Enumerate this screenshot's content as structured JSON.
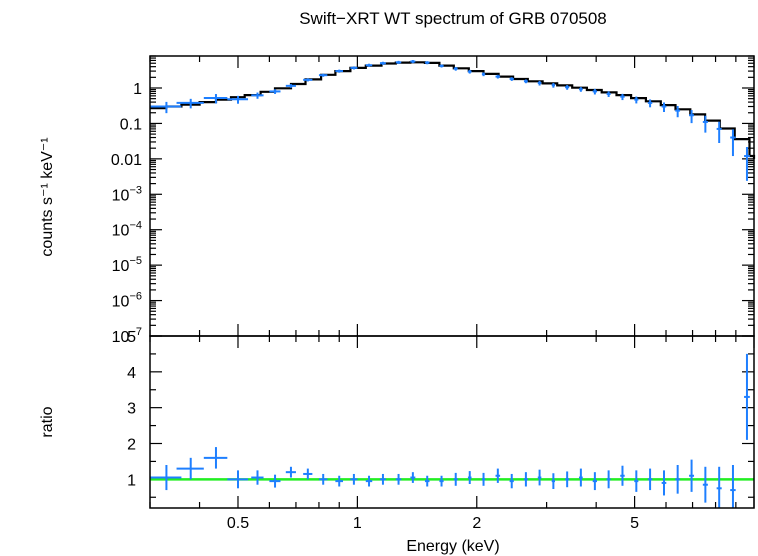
{
  "title": "Swift−XRT WT spectrum of GRB 070508",
  "xlabel": "Energy (keV)",
  "top_ylabel": "counts s⁻¹ keV⁻¹",
  "bottom_ylabel": "ratio",
  "colors": {
    "data": "#1e7fff",
    "model": "#000000",
    "unity_line": "#22ee22",
    "axes": "#000000"
  },
  "chart_data": [
    {
      "type": "line",
      "panel": "spectrum",
      "ylabel": "counts s⁻¹ keV⁻¹",
      "xscale": "log",
      "yscale": "log",
      "xlim": [
        0.3,
        10
      ],
      "ylim": [
        1e-07,
        8
      ],
      "yticks": [
        {
          "value": 1,
          "base": "1",
          "exp": ""
        },
        {
          "value": 0.1,
          "base": "0.1",
          "exp": ""
        },
        {
          "value": 0.01,
          "base": "0.01",
          "exp": ""
        },
        {
          "value": 0.001,
          "base": "10",
          "exp": "−3"
        },
        {
          "value": 0.0001,
          "base": "10",
          "exp": "−4"
        },
        {
          "value": 1e-05,
          "base": "10",
          "exp": "−5"
        },
        {
          "value": 1e-06,
          "base": "10",
          "exp": "−6"
        },
        {
          "value": 1e-07,
          "base": "10",
          "exp": "−7"
        }
      ],
      "series": [
        {
          "name": "",
          "kind": "data",
          "x": [
            0.33,
            0.38,
            0.44,
            0.5,
            0.56,
            0.62,
            0.68,
            0.75,
            0.82,
            0.9,
            0.98,
            1.07,
            1.16,
            1.27,
            1.38,
            1.5,
            1.63,
            1.77,
            1.92,
            2.08,
            2.26,
            2.45,
            2.66,
            2.88,
            3.12,
            3.38,
            3.66,
            3.97,
            4.3,
            4.66,
            5.05,
            5.47,
            5.93,
            6.42,
            6.96,
            7.54,
            8.17,
            8.85,
            9.6
          ],
          "y": [
            0.3,
            0.38,
            0.52,
            0.48,
            0.62,
            0.8,
            1.15,
            1.7,
            2.3,
            3.0,
            3.7,
            4.4,
            5.0,
            5.3,
            5.6,
            5.2,
            4.2,
            3.5,
            2.9,
            2.45,
            2.1,
            1.8,
            1.55,
            1.38,
            1.2,
            1.05,
            0.92,
            0.8,
            0.68,
            0.57,
            0.47,
            0.38,
            0.3,
            0.23,
            0.17,
            0.11,
            0.07,
            0.04,
            0.012
          ],
          "xerr": [
            0.03,
            0.03,
            0.03,
            0.03,
            0.02,
            0.02,
            0.02,
            0.02,
            0.02,
            0.02,
            0.02,
            0.02,
            0.02,
            0.02,
            0.02,
            0.02,
            0.02,
            0.02,
            0.02,
            0.02,
            0.03,
            0.03,
            0.03,
            0.03,
            0.03,
            0.04,
            0.04,
            0.05,
            0.05,
            0.06,
            0.06,
            0.07,
            0.08,
            0.09,
            0.1,
            0.11,
            0.12,
            0.14,
            0.16
          ],
          "yerr_frac": [
            0.35,
            0.3,
            0.3,
            0.25,
            0.2,
            0.15,
            0.12,
            0.1,
            0.1,
            0.1,
            0.1,
            0.1,
            0.1,
            0.1,
            0.1,
            0.1,
            0.1,
            0.12,
            0.12,
            0.12,
            0.12,
            0.12,
            0.12,
            0.15,
            0.15,
            0.15,
            0.15,
            0.18,
            0.18,
            0.2,
            0.22,
            0.25,
            0.3,
            0.35,
            0.4,
            0.5,
            0.6,
            0.7,
            0.8
          ]
        },
        {
          "name": "",
          "kind": "model",
          "x": [
            0.3,
            0.33,
            0.36,
            0.4,
            0.44,
            0.48,
            0.52,
            0.57,
            0.62,
            0.68,
            0.74,
            0.81,
            0.88,
            0.96,
            1.05,
            1.15,
            1.25,
            1.36,
            1.48,
            1.61,
            1.75,
            1.91,
            2.08,
            2.27,
            2.47,
            2.69,
            2.93,
            3.19,
            3.48,
            3.79,
            4.13,
            4.5,
            4.9,
            5.34,
            5.82,
            6.34,
            6.91,
            7.53,
            8.2,
            8.94,
            9.74,
            10.0
          ],
          "y": [
            0.27,
            0.3,
            0.34,
            0.4,
            0.47,
            0.55,
            0.63,
            0.78,
            0.98,
            1.3,
            1.75,
            2.35,
            3.0,
            3.7,
            4.3,
            4.9,
            5.2,
            5.3,
            5.1,
            4.3,
            3.6,
            3.0,
            2.5,
            2.1,
            1.8,
            1.55,
            1.35,
            1.18,
            1.02,
            0.88,
            0.75,
            0.63,
            0.52,
            0.42,
            0.33,
            0.25,
            0.18,
            0.12,
            0.072,
            0.036,
            0.012,
            0.01
          ]
        }
      ]
    },
    {
      "type": "line",
      "panel": "ratio",
      "ylabel": "ratio",
      "xlabel": "Energy (keV)",
      "xscale": "log",
      "yscale": "linear",
      "xlim": [
        0.3,
        10
      ],
      "ylim": [
        0.2,
        5
      ],
      "yticks": [
        {
          "value": 1,
          "label": "1"
        },
        {
          "value": 2,
          "label": "2"
        },
        {
          "value": 3,
          "label": "3"
        },
        {
          "value": 4,
          "label": "4"
        },
        {
          "value": 5,
          "label": "5"
        }
      ],
      "xticks": [
        {
          "value": 0.5,
          "label": "0.5"
        },
        {
          "value": 1,
          "label": "1"
        },
        {
          "value": 2,
          "label": "2"
        },
        {
          "value": 5,
          "label": "5"
        }
      ],
      "reference_line": 1,
      "series": [
        {
          "name": "",
          "kind": "data",
          "x": [
            0.33,
            0.38,
            0.44,
            0.5,
            0.56,
            0.62,
            0.68,
            0.75,
            0.82,
            0.9,
            0.98,
            1.07,
            1.16,
            1.27,
            1.38,
            1.5,
            1.63,
            1.77,
            1.92,
            2.08,
            2.26,
            2.45,
            2.66,
            2.88,
            3.12,
            3.38,
            3.66,
            3.97,
            4.3,
            4.66,
            5.05,
            5.47,
            5.93,
            6.42,
            6.96,
            7.54,
            8.17,
            8.85,
            9.6
          ],
          "y": [
            1.05,
            1.3,
            1.6,
            1.0,
            1.05,
            0.95,
            1.2,
            1.15,
            1.0,
            0.95,
            1.0,
            0.95,
            1.0,
            1.0,
            1.05,
            0.95,
            0.95,
            1.0,
            1.05,
            1.0,
            1.1,
            0.95,
            1.0,
            1.05,
            0.95,
            1.0,
            1.05,
            0.95,
            1.0,
            1.1,
            0.95,
            1.0,
            0.9,
            1.0,
            1.1,
            0.85,
            0.75,
            0.7,
            3.3
          ],
          "xerr": [
            0.03,
            0.03,
            0.03,
            0.03,
            0.02,
            0.02,
            0.02,
            0.02,
            0.02,
            0.02,
            0.02,
            0.02,
            0.02,
            0.02,
            0.02,
            0.02,
            0.02,
            0.02,
            0.02,
            0.02,
            0.03,
            0.03,
            0.03,
            0.03,
            0.03,
            0.04,
            0.04,
            0.05,
            0.05,
            0.06,
            0.06,
            0.07,
            0.08,
            0.09,
            0.1,
            0.11,
            0.12,
            0.14,
            0.16
          ],
          "yerr": [
            0.35,
            0.3,
            0.3,
            0.25,
            0.2,
            0.18,
            0.15,
            0.15,
            0.15,
            0.15,
            0.15,
            0.15,
            0.15,
            0.15,
            0.15,
            0.15,
            0.15,
            0.18,
            0.18,
            0.18,
            0.2,
            0.2,
            0.2,
            0.22,
            0.22,
            0.22,
            0.25,
            0.25,
            0.25,
            0.28,
            0.3,
            0.3,
            0.35,
            0.4,
            0.45,
            0.5,
            0.6,
            0.7,
            1.2
          ]
        }
      ]
    }
  ]
}
